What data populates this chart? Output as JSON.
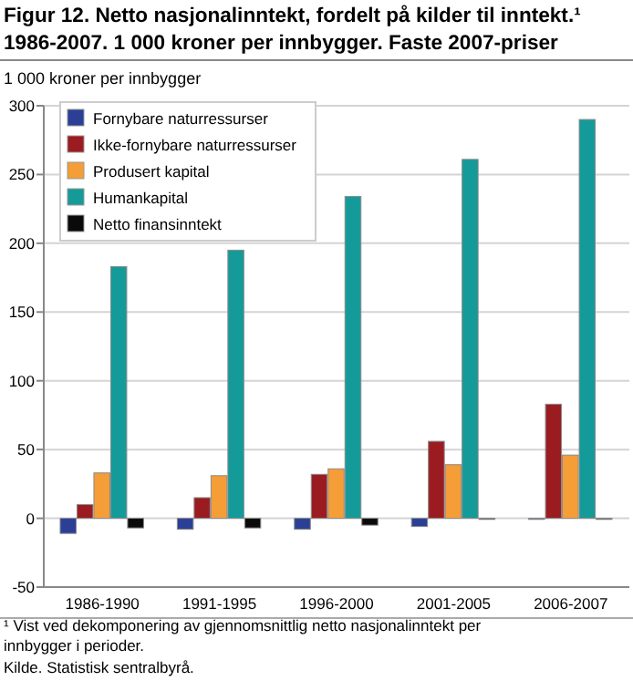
{
  "chart_data": {
    "type": "bar",
    "title": "Figur 12. Netto nasjonalinntekt, fordelt på kilder til inntekt.¹",
    "subtitle": "1986-2007. 1 000 kroner per innbygger. Faste 2007-priser",
    "ylabel": "1 000 kroner per innbygger",
    "categories": [
      "1986-1990",
      "1991-1995",
      "1996-2000",
      "2001-2005",
      "2006-2007"
    ],
    "series": [
      {
        "name": "Fornybare naturressurser",
        "color": "#2a3f95",
        "values": [
          -11,
          -8,
          -8,
          -6,
          0
        ]
      },
      {
        "name": "Ikke-fornybare naturressurser",
        "color": "#9b1c20",
        "values": [
          10,
          15,
          32,
          56,
          83
        ]
      },
      {
        "name": "Produsert kapital",
        "color": "#f59d36",
        "values": [
          33,
          31,
          36,
          39,
          46
        ]
      },
      {
        "name": "Humankapital",
        "color": "#149b99",
        "values": [
          183,
          195,
          234,
          261,
          290
        ]
      },
      {
        "name": "Netto finansinntekt",
        "color": "#0a0a0a",
        "values": [
          -7,
          -7,
          -5,
          0,
          0
        ]
      }
    ],
    "ylim": [
      -50,
      300
    ],
    "yticks": [
      -50,
      0,
      50,
      100,
      150,
      200,
      250,
      300
    ],
    "grid": "y",
    "legend": "top left",
    "annotations": [
      "¹ Vist ved dekomponering av gjennomsnittlig netto nasjonalinntekt per innbygger i perioder.",
      "Kilde. Statistisk sentralbyrå."
    ]
  }
}
